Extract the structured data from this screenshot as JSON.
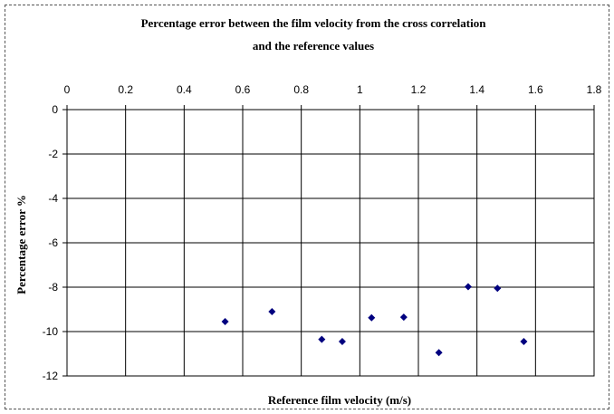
{
  "chart_data": {
    "type": "scatter",
    "title_lines": [
      "Percentage error between the film velocity from the cross correlation",
      "and the reference values"
    ],
    "xlabel": "Reference film velocity (m/s)",
    "ylabel": "Percentage error %",
    "x_axis_position": "top",
    "xlim": [
      0,
      1.8
    ],
    "ylim": [
      -12,
      0
    ],
    "x_ticks": [
      "0",
      "0.2",
      "0.4",
      "0.6",
      "0.8",
      "1",
      "1.2",
      "1.4",
      "1.6",
      "1.8"
    ],
    "y_ticks": [
      "0",
      "-2",
      "-4",
      "-6",
      "-8",
      "-10",
      "-12"
    ],
    "grid": true,
    "marker": "diamond",
    "marker_color": "#00007f",
    "points": [
      {
        "x": 0.54,
        "y": -9.55
      },
      {
        "x": 0.7,
        "y": -9.1
      },
      {
        "x": 0.87,
        "y": -10.35
      },
      {
        "x": 0.94,
        "y": -10.45
      },
      {
        "x": 1.04,
        "y": -9.38
      },
      {
        "x": 1.15,
        "y": -9.35
      },
      {
        "x": 1.27,
        "y": -10.95
      },
      {
        "x": 1.37,
        "y": -7.98
      },
      {
        "x": 1.47,
        "y": -8.05
      },
      {
        "x": 1.56,
        "y": -10.45
      }
    ]
  }
}
